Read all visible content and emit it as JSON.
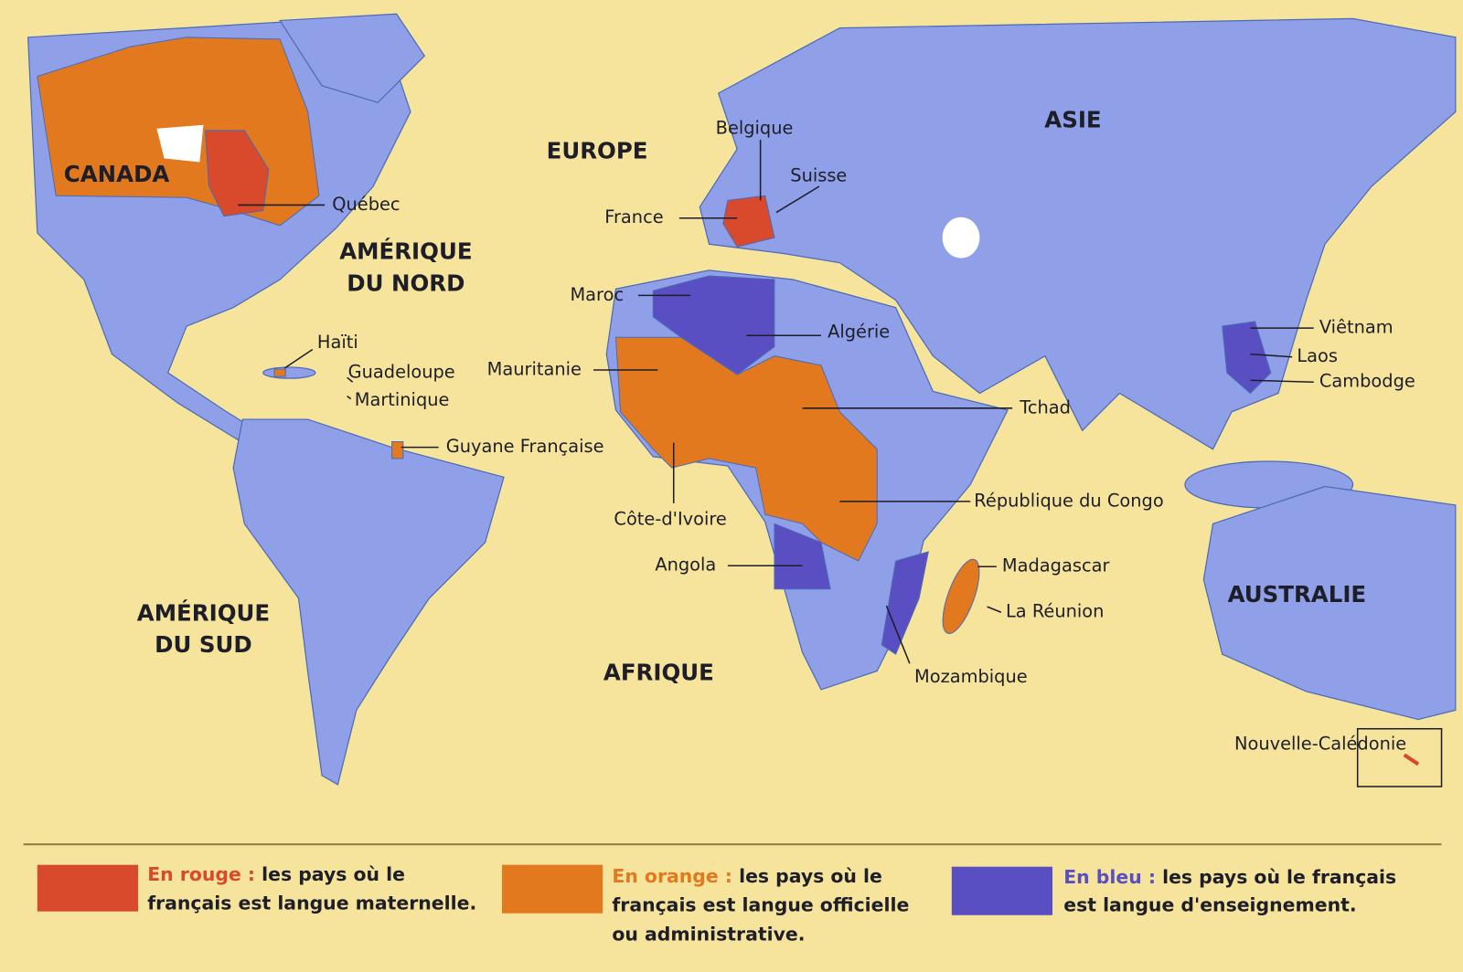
{
  "regions": [
    {
      "lines": [
        "CANADA"
      ]
    },
    {
      "lines": [
        "AMÉRIQUE",
        "DU NORD"
      ]
    },
    {
      "lines": [
        "EUROPE"
      ]
    },
    {
      "lines": [
        "ASIE"
      ]
    },
    {
      "lines": [
        "AMÉRIQUE",
        "DU SUD"
      ]
    },
    {
      "lines": [
        "AFRIQUE"
      ]
    },
    {
      "lines": [
        "AUSTRALIE"
      ]
    }
  ],
  "labels": [
    "Québec",
    "Belgique",
    "Suisse",
    "France",
    "Maroc",
    "Algérie",
    "Haïti",
    "Guadeloupe",
    "Martinique",
    "Mauritanie",
    "Guyane Française",
    "Tchad",
    "Côte-d'Ivoire",
    "République du Congo",
    "Angola",
    "Madagascar",
    "La Réunion",
    "Mozambique",
    "Viêtnam",
    "Laos",
    "Cambodge",
    "Nouvelle-Calédonie"
  ],
  "legend": [
    {
      "highlight": "En rouge :",
      "lines": [
        "les pays où le",
        "français est langue maternelle."
      ]
    },
    {
      "highlight": "En orange :",
      "lines": [
        "les pays où le",
        "français est langue officielle",
        "ou administrative."
      ]
    },
    {
      "highlight": "En bleu :",
      "lines": [
        "les pays où le français",
        "est langue d'enseignement."
      ]
    }
  ]
}
